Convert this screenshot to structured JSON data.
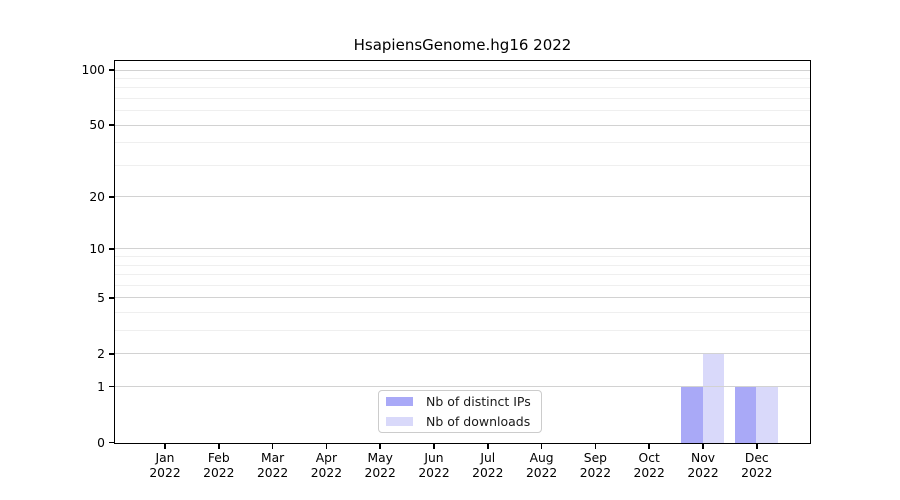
{
  "chart_data": {
    "type": "bar",
    "title": "HsapiensGenome.hg16 2022",
    "categories": [
      {
        "month": "Jan",
        "year": "2022"
      },
      {
        "month": "Feb",
        "year": "2022"
      },
      {
        "month": "Mar",
        "year": "2022"
      },
      {
        "month": "Apr",
        "year": "2022"
      },
      {
        "month": "May",
        "year": "2022"
      },
      {
        "month": "Jun",
        "year": "2022"
      },
      {
        "month": "Jul",
        "year": "2022"
      },
      {
        "month": "Aug",
        "year": "2022"
      },
      {
        "month": "Sep",
        "year": "2022"
      },
      {
        "month": "Oct",
        "year": "2022"
      },
      {
        "month": "Nov",
        "year": "2022"
      },
      {
        "month": "Dec",
        "year": "2022"
      }
    ],
    "series": [
      {
        "name": "Nb of distinct IPs",
        "color": "#a9a9f7",
        "values": [
          0,
          0,
          0,
          0,
          0,
          0,
          0,
          0,
          0,
          0,
          1,
          1
        ]
      },
      {
        "name": "Nb of downloads",
        "color": "#d9d9fa",
        "values": [
          0,
          0,
          0,
          0,
          0,
          0,
          0,
          0,
          0,
          0,
          2,
          1
        ]
      }
    ],
    "y_axis": {
      "scale": "log1p",
      "major_ticks": [
        0,
        1,
        2,
        5,
        10,
        20,
        50,
        100
      ],
      "minor_gridlines": [
        3,
        4,
        6,
        7,
        8,
        9,
        30,
        40,
        60,
        70,
        80,
        90
      ],
      "ylim": [
        0,
        115
      ]
    },
    "xlabel": "",
    "ylabel": "",
    "grid": true,
    "legend_position": "inside lower-center",
    "colors": {
      "major_grid": "#d2d2d2",
      "minor_grid": "#efefef",
      "spine": "#000000",
      "text": "#000000"
    }
  }
}
